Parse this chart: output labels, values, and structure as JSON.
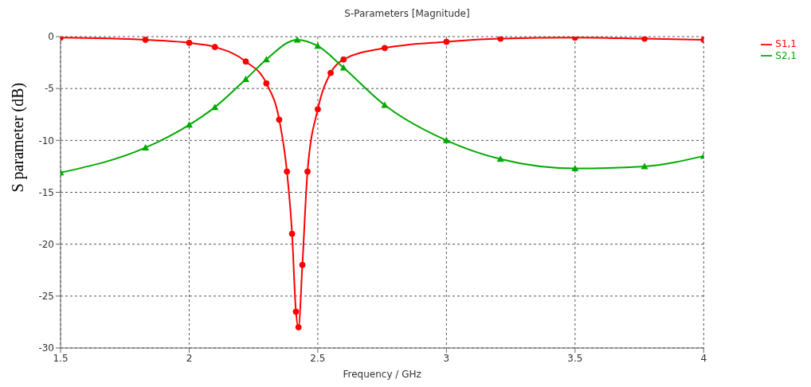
{
  "chart_data": {
    "type": "line",
    "title": "S-Parameters [Magnitude]",
    "xlabel": "Frequency / GHz",
    "ylabel": "S parameter (dB)",
    "xlim": [
      1.5,
      4
    ],
    "xticks": [
      1.5,
      2,
      2.5,
      3,
      3.5,
      4
    ],
    "ylim": [
      -30,
      0
    ],
    "yticks": [
      -30,
      -25,
      -20,
      -15,
      -10,
      -5,
      0
    ],
    "grid": true,
    "legend": "top right",
    "line_style": "solid",
    "series": [
      {
        "name": "S1,1",
        "color": "#ff0000",
        "marker": "circle",
        "x": [
          1.5,
          1.83,
          2.0,
          2.1,
          2.22,
          2.3,
          2.35,
          2.38,
          2.4,
          2.415,
          2.425,
          2.44,
          2.46,
          2.5,
          2.55,
          2.6,
          2.76,
          3.0,
          3.21,
          3.5,
          3.77,
          4.0
        ],
        "values": [
          -0.1,
          -0.3,
          -0.6,
          -1.0,
          -2.4,
          -4.5,
          -8,
          -13,
          -19,
          -26.5,
          -28,
          -22,
          -13,
          -7,
          -3.5,
          -2.2,
          -1.1,
          -0.5,
          -0.2,
          -0.1,
          -0.2,
          -0.3
        ]
      },
      {
        "name": "S2,1",
        "color": "#00aa00",
        "marker": "triangle",
        "x": [
          1.5,
          1.83,
          2.0,
          2.1,
          2.22,
          2.3,
          2.42,
          2.5,
          2.6,
          2.76,
          3.0,
          3.21,
          3.5,
          3.77,
          4.0
        ],
        "values": [
          -13.1,
          -10.7,
          -8.5,
          -6.8,
          -4.1,
          -2.2,
          -0.3,
          -0.9,
          -3.0,
          -6.6,
          -10.0,
          -11.8,
          -12.7,
          -12.5,
          -11.5
        ]
      }
    ]
  }
}
